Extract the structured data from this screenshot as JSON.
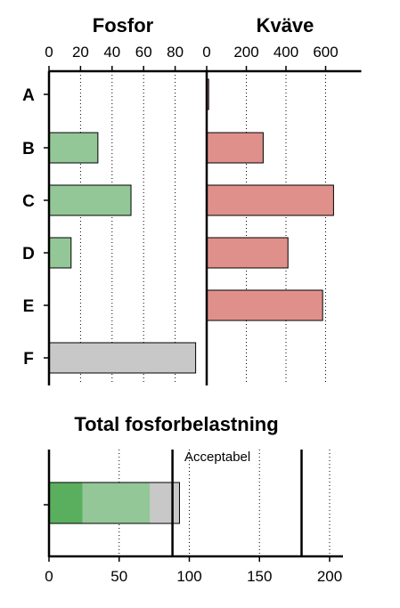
{
  "chart_data": [
    {
      "type": "bar",
      "orientation": "horizontal",
      "title": "Fosfor",
      "categories": [
        "A",
        "B",
        "C",
        "D",
        "E",
        "F"
      ],
      "values": [
        0,
        31,
        52,
        14,
        0,
        93
      ],
      "xlim": [
        0,
        100
      ],
      "ticks": [
        "0",
        "20",
        "40",
        "60",
        "80"
      ],
      "tick_values": [
        0,
        20,
        40,
        60,
        80
      ],
      "grid": "vertical dotted",
      "colors": [
        "#93c797",
        "#93c797",
        "#93c797",
        "#93c797",
        "#93c797",
        "#c8c8c8"
      ]
    },
    {
      "type": "bar",
      "orientation": "horizontal",
      "title": "Kväve",
      "categories": [
        "A",
        "B",
        "C",
        "D",
        "E",
        "F"
      ],
      "values": [
        10,
        285,
        640,
        410,
        585,
        0
      ],
      "xlim": [
        0,
        780
      ],
      "ticks": [
        "0",
        "200",
        "400",
        "600"
      ],
      "tick_values": [
        0,
        200,
        400,
        600
      ],
      "grid": "vertical dotted",
      "colors": [
        "#e0908a",
        "#e0908a",
        "#e0908a",
        "#e0908a",
        "#e0908a",
        "#e0908a"
      ]
    },
    {
      "type": "bar",
      "orientation": "horizontal",
      "stacked": true,
      "title": "Total fosforbelastning",
      "segments": [
        {
          "value": 24,
          "color": "#5aaf5f"
        },
        {
          "value": 72,
          "color": "#93c797"
        },
        {
          "value": 93,
          "color": "#c8c8c8"
        }
      ],
      "xlim": [
        0,
        200
      ],
      "ticks": [
        "0",
        "50",
        "100",
        "150",
        "200"
      ],
      "tick_values": [
        0,
        50,
        100,
        150,
        200
      ],
      "reference_lines": [
        88,
        180
      ],
      "annotation": "Acceptabel",
      "grid": "vertical dotted"
    }
  ]
}
